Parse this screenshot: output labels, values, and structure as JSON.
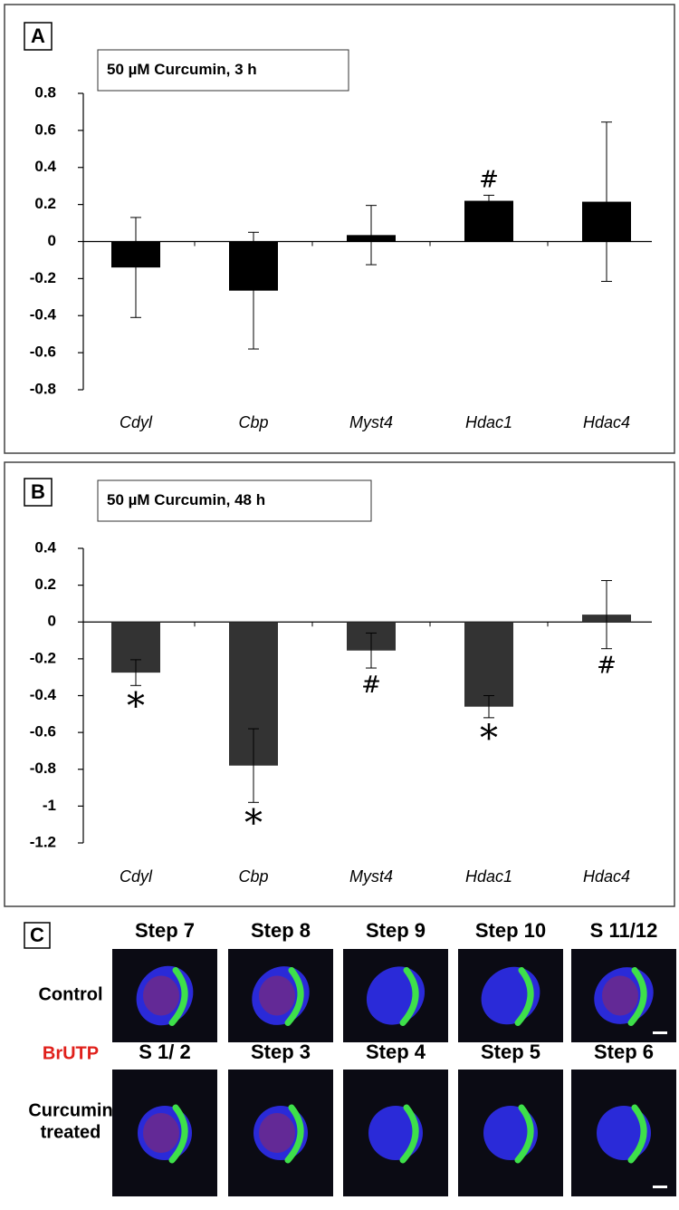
{
  "chart_data": [
    {
      "type": "bar",
      "panel_label": "A",
      "title": "50 µM Curcumin, 3 h",
      "categories": [
        "Cdyl",
        "Cbp",
        "Myst4",
        "Hdac1",
        "Hdac4"
      ],
      "values": [
        -0.14,
        -0.265,
        0.035,
        0.22,
        0.215
      ],
      "errors": [
        0.27,
        0.315,
        0.16,
        0.03,
        0.43
      ],
      "annotations": [
        null,
        null,
        null,
        "#",
        null
      ],
      "annotation_position": "above",
      "color": "#000000",
      "ylim": [
        -0.8,
        0.8
      ],
      "yticks": [
        -0.8,
        -0.6,
        -0.4,
        -0.2,
        0,
        0.2,
        0.4,
        0.6,
        0.8
      ]
    },
    {
      "type": "bar",
      "panel_label": "B",
      "title": "50 µM Curcumin, 48 h",
      "categories": [
        "Cdyl",
        "Cbp",
        "Myst4",
        "Hdac1",
        "Hdac4"
      ],
      "values": [
        -0.275,
        -0.78,
        -0.155,
        -0.46,
        0.04
      ],
      "errors": [
        0.07,
        0.2,
        0.095,
        0.06,
        0.185
      ],
      "annotations": [
        "*",
        "*",
        "#",
        "*",
        "#"
      ],
      "annotation_position": "below",
      "color": "#333333",
      "ylim": [
        -1.2,
        0.4
      ],
      "yticks": [
        -1.2,
        -1,
        -0.8,
        -0.6,
        -0.4,
        -0.2,
        0,
        0.2,
        0.4
      ]
    }
  ],
  "panel_c": {
    "panel_label": "C",
    "control_label": "Control",
    "brutp_label": "BrUTP",
    "treated_label": [
      "Curcumin",
      "treated"
    ],
    "control_steps": [
      "Step 7",
      "Step 8",
      "Step 9",
      "Step 10",
      "S 11/12"
    ],
    "treated_steps": [
      "S  1/ 2",
      "Step 3",
      "Step 4",
      "Step 5",
      "Step 6"
    ]
  }
}
